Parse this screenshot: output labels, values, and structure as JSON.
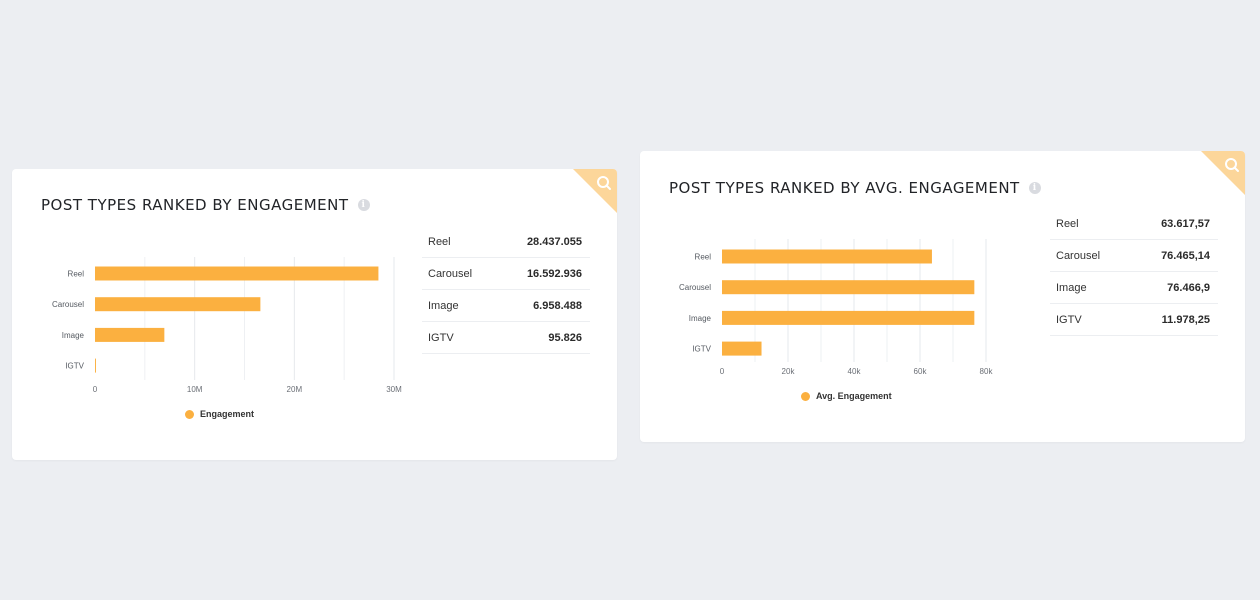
{
  "colors": {
    "bar": "#fbb040",
    "corner": "#fcd69a",
    "background": "#eceef2"
  },
  "cards": [
    {
      "title": "POST TYPES RANKED BY ENGAGEMENT",
      "legend": "Engagement",
      "table": [
        {
          "label": "Reel",
          "value": "28.437.055"
        },
        {
          "label": "Carousel",
          "value": "16.592.936"
        },
        {
          "label": "Image",
          "value": "6.958.488"
        },
        {
          "label": "IGTV",
          "value": "95.826"
        }
      ]
    },
    {
      "title": "POST TYPES RANKED BY AVG. ENGAGEMENT",
      "legend": "Avg. Engagement",
      "table": [
        {
          "label": "Reel",
          "value": "63.617,57"
        },
        {
          "label": "Carousel",
          "value": "76.465,14"
        },
        {
          "label": "Image",
          "value": "76.466,9"
        },
        {
          "label": "IGTV",
          "value": "11.978,25"
        }
      ]
    }
  ],
  "chart_data": [
    {
      "type": "bar",
      "orientation": "horizontal",
      "categories": [
        "Reel",
        "Carousel",
        "Image",
        "IGTV"
      ],
      "series": [
        {
          "name": "Engagement",
          "values": [
            28437055,
            16592936,
            6958488,
            95826
          ]
        }
      ],
      "xlim": [
        0,
        30000000
      ],
      "xticks": [
        0,
        10000000,
        20000000,
        30000000
      ],
      "xtick_labels": [
        "0",
        "10M",
        "20M",
        "30M"
      ],
      "grid": true,
      "legend_position": "bottom"
    },
    {
      "type": "bar",
      "orientation": "horizontal",
      "categories": [
        "Reel",
        "Carousel",
        "Image",
        "IGTV"
      ],
      "series": [
        {
          "name": "Avg. Engagement",
          "values": [
            63617.57,
            76465.14,
            76466.9,
            11978.25
          ]
        }
      ],
      "xlim": [
        0,
        90000
      ],
      "xticks": [
        0,
        20000,
        40000,
        60000,
        80000
      ],
      "xtick_labels": [
        "0",
        "20k",
        "40k",
        "60k",
        "80k"
      ],
      "grid": true,
      "legend_position": "bottom"
    }
  ],
  "icons": {
    "corner": "search-icon",
    "info": "info-icon"
  }
}
